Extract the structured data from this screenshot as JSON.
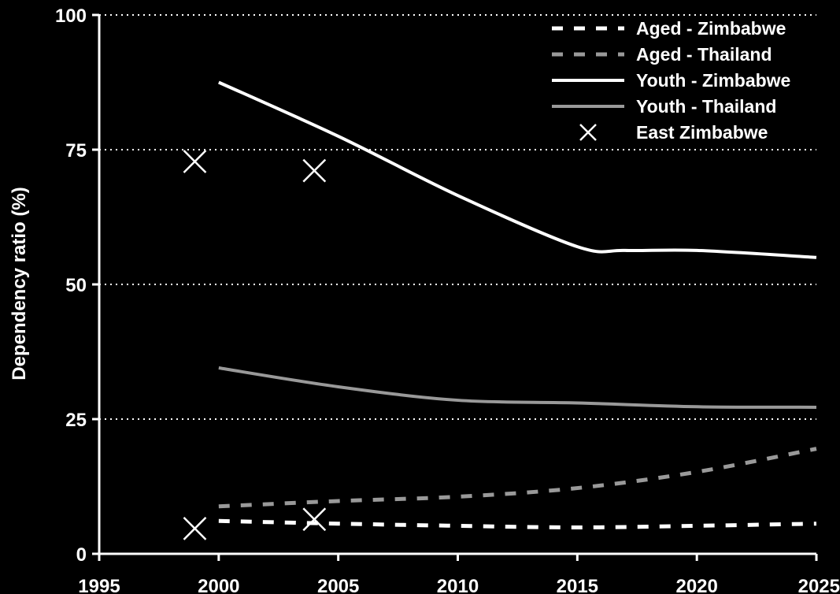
{
  "chart_data": {
    "type": "line",
    "title": "",
    "xlabel": "",
    "ylabel": "Dependency ratio (%)",
    "xlim": [
      1995,
      2025
    ],
    "ylim": [
      0,
      100
    ],
    "x_ticks": [
      "1995",
      "2000",
      "2005",
      "2010",
      "2015",
      "2020",
      "2025"
    ],
    "y_ticks": [
      "0",
      "25",
      "50",
      "75",
      "100"
    ],
    "grid": "horizontal dotted",
    "legend_position": "top-right",
    "series": [
      {
        "name": "Aged - Zimbabwe",
        "style": "dashed",
        "color": "#ffffff",
        "x": [
          2000,
          2005,
          2010,
          2015,
          2020,
          2025
        ],
        "y": [
          6.1,
          5.6,
          5.2,
          4.9,
          5.2,
          5.6
        ]
      },
      {
        "name": "Aged - Thailand",
        "style": "dashed",
        "color": "#999999",
        "x": [
          2000,
          2005,
          2010,
          2015,
          2020,
          2025
        ],
        "y": [
          8.8,
          9.8,
          10.6,
          12.2,
          15.2,
          19.5
        ]
      },
      {
        "name": "Youth - Zimbabwe",
        "style": "solid",
        "color": "#ffffff",
        "x": [
          2000,
          2005,
          2010,
          2015,
          2017,
          2020,
          2025
        ],
        "y": [
          87.5,
          77.5,
          66.5,
          57.0,
          56.3,
          56.3,
          55.0
        ]
      },
      {
        "name": "Youth - Thailand",
        "style": "solid",
        "color": "#999999",
        "x": [
          2000,
          2005,
          2010,
          2015,
          2020,
          2025
        ],
        "y": [
          34.5,
          31.0,
          28.5,
          28.0,
          27.3,
          27.2
        ]
      },
      {
        "name": "East Zimbabwe",
        "style": "markers",
        "marker": "x",
        "color": "#ffffff",
        "x": [
          1999,
          1999,
          2004,
          2004
        ],
        "y": [
          72.8,
          4.7,
          71.1,
          6.4
        ]
      }
    ]
  }
}
